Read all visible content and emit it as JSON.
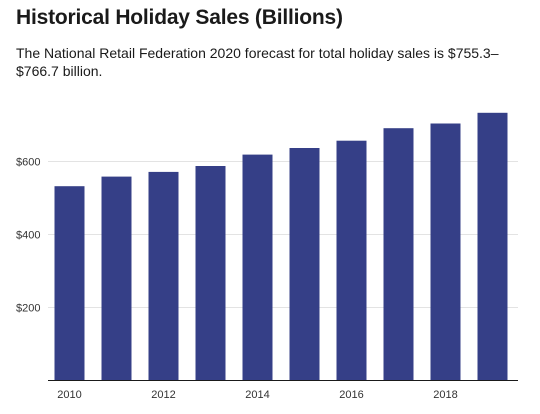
{
  "title": "Historical Holiday Sales (Billions)",
  "subtitle": "The National Retail Federation 2020 forecast for total holiday sales is $755.3–$766.7 billion.",
  "colors": {
    "bar": "#353f87",
    "gridline": "#e3e3e3",
    "axis": "#1a1a1a",
    "text": "#1a1a1a"
  },
  "chart_data": {
    "type": "bar",
    "categories": [
      "2010",
      "2011",
      "2012",
      "2013",
      "2014",
      "2015",
      "2016",
      "2017",
      "2018",
      "2019"
    ],
    "values": [
      530,
      556,
      569,
      585,
      616,
      634,
      654,
      688,
      701,
      730
    ],
    "title": "Historical Holiday Sales (Billions)",
    "xlabel": "",
    "ylabel": "",
    "ylim": [
      0,
      800
    ],
    "y_ticks": [
      200,
      400,
      600
    ],
    "y_tick_labels": [
      "$200",
      "$400",
      "$600"
    ],
    "x_tick_labels": [
      "2010",
      "2012",
      "2014",
      "2016",
      "2018"
    ],
    "grid": true,
    "legend": "none"
  }
}
